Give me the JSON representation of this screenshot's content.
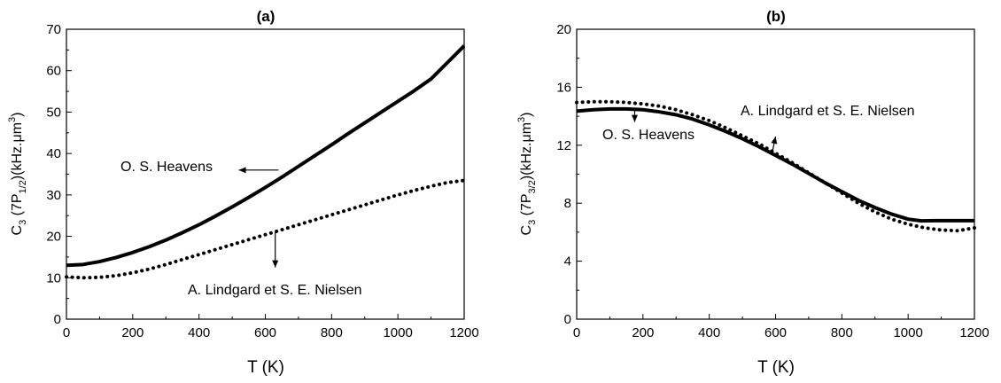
{
  "chart_data": [
    {
      "type": "line",
      "title": "(a)",
      "xlabel": "T (K)",
      "ylabel": {
        "main": "C",
        "sub1": "3",
        "mid": " (7P",
        "sub2": "1/2",
        "end": ")(kHz.μm",
        "sup": "3",
        "close": ")"
      },
      "xlim": [
        0,
        1200
      ],
      "ylim": [
        0,
        70
      ],
      "xticks": [
        0,
        200,
        400,
        600,
        800,
        1000,
        1200
      ],
      "yticks": [
        0,
        10,
        20,
        30,
        40,
        50,
        60,
        70
      ],
      "series": [
        {
          "name": "O. S. Heavens",
          "style": "solid",
          "x": [
            0,
            50,
            100,
            150,
            200,
            250,
            300,
            350,
            400,
            450,
            500,
            550,
            600,
            650,
            700,
            750,
            800,
            850,
            900,
            950,
            1000,
            1050,
            1100,
            1150,
            1200
          ],
          "y": [
            13.0,
            13.2,
            13.9,
            14.9,
            16.1,
            17.5,
            19.1,
            20.9,
            22.8,
            24.9,
            27.1,
            29.4,
            31.8,
            34.3,
            36.9,
            39.5,
            42.1,
            44.8,
            47.4,
            50.0,
            52.6,
            55.2,
            58.0,
            62.0,
            66.0
          ]
        },
        {
          "name": "A. Lindgard et S. E. Nielsen",
          "style": "dotted",
          "x": [
            0,
            50,
            100,
            150,
            200,
            250,
            300,
            350,
            400,
            450,
            500,
            550,
            600,
            650,
            700,
            750,
            800,
            850,
            900,
            950,
            1000,
            1050,
            1100,
            1150,
            1200
          ],
          "y": [
            10.2,
            10.0,
            10.1,
            10.5,
            11.2,
            12.1,
            13.2,
            14.4,
            15.6,
            16.8,
            18.0,
            19.2,
            20.4,
            21.6,
            22.8,
            24.0,
            25.2,
            26.4,
            27.6,
            28.8,
            30.0,
            31.1,
            32.1,
            33.0,
            33.5
          ]
        }
      ],
      "annotations": [
        {
          "text": "O. S. Heavens",
          "arrow_from": [
            640,
            36
          ],
          "arrow_to": [
            520,
            36
          ]
        },
        {
          "text": "A. Lindgard et S. E. Nielsen",
          "arrow_from": [
            630,
            21
          ],
          "arrow_to": [
            630,
            12.5
          ]
        }
      ]
    },
    {
      "type": "line",
      "title": "(b)",
      "xlabel": "T (K)",
      "ylabel": {
        "main": "C",
        "sub1": "3",
        "mid": " (7P",
        "sub2": "3/2",
        "end": ")(kHz.μm",
        "sup": "3",
        "close": ")"
      },
      "xlim": [
        0,
        1200
      ],
      "ylim": [
        0,
        20
      ],
      "xticks": [
        0,
        200,
        400,
        600,
        800,
        1000,
        1200
      ],
      "yticks": [
        0,
        4,
        8,
        12,
        16,
        20
      ],
      "series": [
        {
          "name": "O. S. Heavens",
          "style": "solid",
          "x": [
            0,
            50,
            100,
            150,
            200,
            250,
            300,
            350,
            400,
            450,
            500,
            550,
            600,
            650,
            700,
            750,
            800,
            850,
            900,
            950,
            1000,
            1040,
            1080,
            1120,
            1160,
            1200
          ],
          "y": [
            14.35,
            14.45,
            14.5,
            14.5,
            14.45,
            14.3,
            14.1,
            13.8,
            13.4,
            12.95,
            12.45,
            11.9,
            11.3,
            10.7,
            10.05,
            9.4,
            8.8,
            8.2,
            7.7,
            7.25,
            6.9,
            6.78,
            6.8,
            6.8,
            6.8,
            6.8
          ]
        },
        {
          "name": "A. Lindgard et S. E. Nielsen",
          "style": "dotted",
          "x": [
            0,
            50,
            100,
            150,
            200,
            250,
            300,
            350,
            400,
            450,
            500,
            550,
            600,
            650,
            700,
            750,
            800,
            850,
            900,
            950,
            1000,
            1050,
            1100,
            1150,
            1200
          ],
          "y": [
            14.95,
            15.0,
            15.0,
            14.95,
            14.85,
            14.7,
            14.45,
            14.1,
            13.7,
            13.2,
            12.65,
            12.1,
            11.45,
            10.8,
            10.1,
            9.4,
            8.7,
            8.0,
            7.4,
            6.9,
            6.55,
            6.3,
            6.15,
            6.1,
            6.3
          ]
        }
      ],
      "annotations": [
        {
          "text": "O. S. Heavens",
          "arrow_from": [
            175,
            14.55
          ],
          "arrow_to": [
            175,
            13.6
          ]
        },
        {
          "text": "A. Lindgard et S. E. Nielsen",
          "arrow_from": [
            590,
            11.5
          ],
          "arrow_to": [
            600,
            12.6
          ]
        }
      ]
    }
  ]
}
